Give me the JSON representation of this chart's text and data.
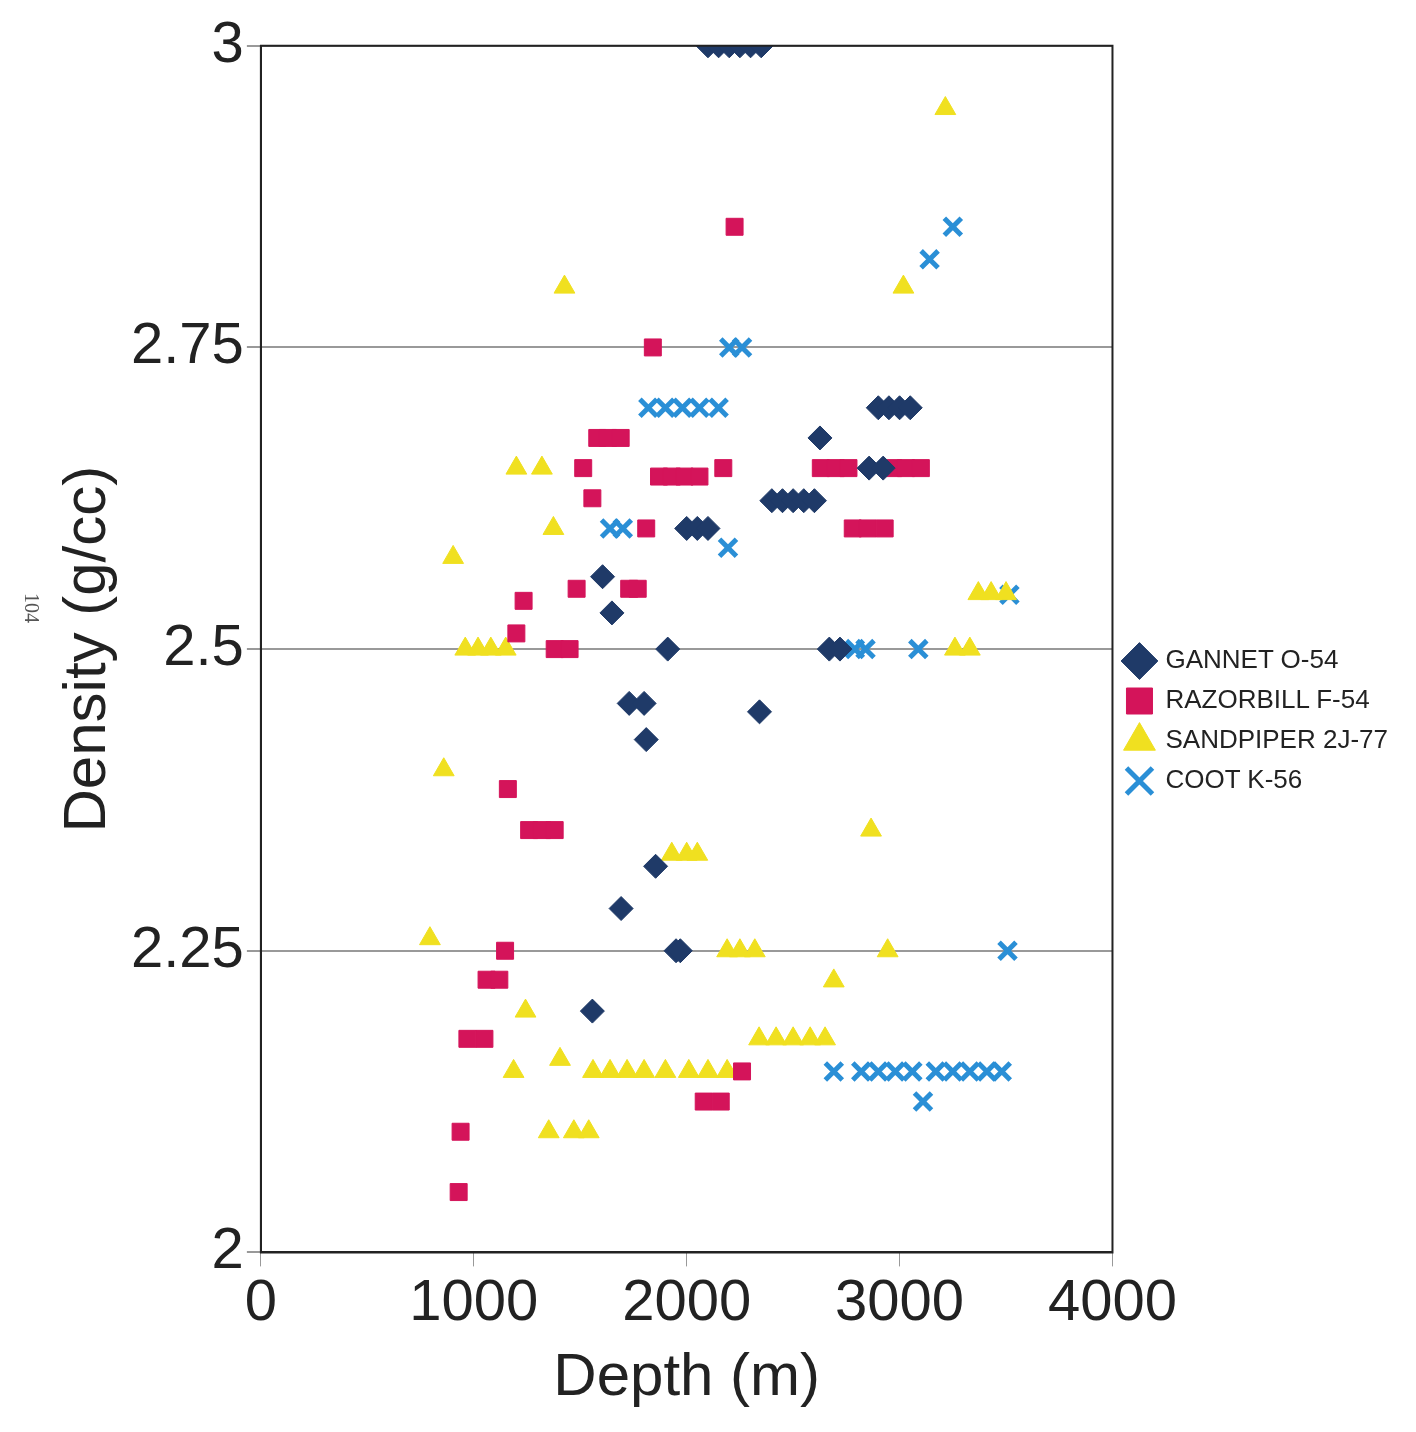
{
  "chart_data": {
    "type": "scatter",
    "xlabel": "Depth (m)",
    "ylabel": "Density (g/cc)",
    "xlim": [
      0,
      4000
    ],
    "xticks": [
      0,
      1000,
      2000,
      3000,
      4000
    ],
    "ylim": [
      2,
      3
    ],
    "yticks": [
      2,
      2.25,
      2.5,
      2.75,
      3
    ],
    "grid": "y",
    "legend": "right",
    "annotations": [
      "104"
    ],
    "series": [
      {
        "name": "GANNET O-54",
        "color": "#1f3a68",
        "marker": "diamond",
        "x": [
          2100,
          2150,
          2200,
          2250,
          2300,
          2350,
          2626,
          2900,
          2950,
          3000,
          3050,
          2857,
          2923,
          2400,
          2450,
          2500,
          2550,
          2600,
          2000,
          2050,
          2100,
          1605,
          1649,
          1911,
          2670,
          2720,
          1730,
          1800,
          1810,
          2342,
          1854,
          1692,
          1950,
          1970,
          1557
        ],
        "values": [
          3.0,
          3.0,
          3.0,
          3.0,
          3.0,
          3.0,
          2.675,
          2.7,
          2.7,
          2.7,
          2.7,
          2.65,
          2.65,
          2.623,
          2.623,
          2.623,
          2.623,
          2.623,
          2.6,
          2.6,
          2.6,
          2.56,
          2.53,
          2.5,
          2.5,
          2.5,
          2.455,
          2.455,
          2.425,
          2.448,
          2.32,
          2.285,
          2.25,
          2.25,
          2.2
        ]
      },
      {
        "name": "RAZORBILL F-54",
        "color": "#d4145a",
        "marker": "square",
        "x": [
          2225,
          1841,
          1580,
          1630,
          1690,
          1514,
          1870,
          1930,
          1990,
          2060,
          2172,
          2630,
          2700,
          2760,
          2970,
          3030,
          3100,
          1557,
          2780,
          2850,
          2930,
          1810,
          1730,
          1770,
          1483,
          1234,
          1200,
          1380,
          1450,
          1160,
          1260,
          1320,
          1380,
          1147,
          1060,
          1120,
          970,
          1050,
          2260,
          2080,
          2160,
          938,
          929
        ],
        "values": [
          2.85,
          2.75,
          2.675,
          2.675,
          2.675,
          2.65,
          2.643,
          2.643,
          2.643,
          2.643,
          2.65,
          2.65,
          2.65,
          2.65,
          2.65,
          2.65,
          2.65,
          2.625,
          2.6,
          2.6,
          2.6,
          2.6,
          2.55,
          2.55,
          2.55,
          2.54,
          2.513,
          2.5,
          2.5,
          2.384,
          2.35,
          2.35,
          2.35,
          2.25,
          2.226,
          2.226,
          2.177,
          2.177,
          2.15,
          2.125,
          2.125,
          2.1,
          2.05
        ]
      },
      {
        "name": "SANDPIPER 2J-77",
        "color": "#f0e020",
        "marker": "triangle",
        "x": [
          3215,
          3018,
          1426,
          1200,
          1320,
          1374,
          903,
          960,
          1020,
          1080,
          1150,
          3370,
          3430,
          3500,
          3260,
          3330,
          859,
          2866,
          1930,
          2000,
          2050,
          794,
          2190,
          2250,
          2320,
          2944,
          2691,
          1243,
          2340,
          2420,
          2500,
          2580,
          2650,
          1187,
          1405,
          1560,
          1640,
          1720,
          1800,
          1900,
          2010,
          2100,
          2190,
          1352,
          1470,
          1540
        ],
        "values": [
          2.948,
          2.8,
          2.8,
          2.65,
          2.65,
          2.6,
          2.576,
          2.5,
          2.5,
          2.5,
          2.5,
          2.546,
          2.546,
          2.546,
          2.5,
          2.5,
          2.4,
          2.35,
          2.33,
          2.33,
          2.33,
          2.26,
          2.25,
          2.25,
          2.25,
          2.25,
          2.225,
          2.2,
          2.177,
          2.177,
          2.177,
          2.177,
          2.177,
          2.15,
          2.16,
          2.15,
          2.15,
          2.15,
          2.15,
          2.15,
          2.15,
          2.15,
          2.15,
          2.1,
          2.1,
          2.1
        ]
      },
      {
        "name": "COOT K-56",
        "color": "#2a8fd6",
        "marker": "cross",
        "x": [
          3250,
          3141,
          2200,
          2260,
          1820,
          1900,
          1980,
          2060,
          2150,
          1640,
          1700,
          2194,
          3516,
          2790,
          2840,
          3088,
          3507,
          2691,
          2820,
          2900,
          2980,
          3060,
          3170,
          3250,
          3330,
          3410,
          3480,
          3110
        ],
        "values": [
          2.85,
          2.823,
          2.75,
          2.75,
          2.7,
          2.7,
          2.7,
          2.7,
          2.7,
          2.6,
          2.6,
          2.584,
          2.545,
          2.5,
          2.5,
          2.5,
          2.25,
          2.15,
          2.15,
          2.15,
          2.15,
          2.15,
          2.15,
          2.15,
          2.15,
          2.15,
          2.15,
          2.125
        ]
      }
    ]
  }
}
